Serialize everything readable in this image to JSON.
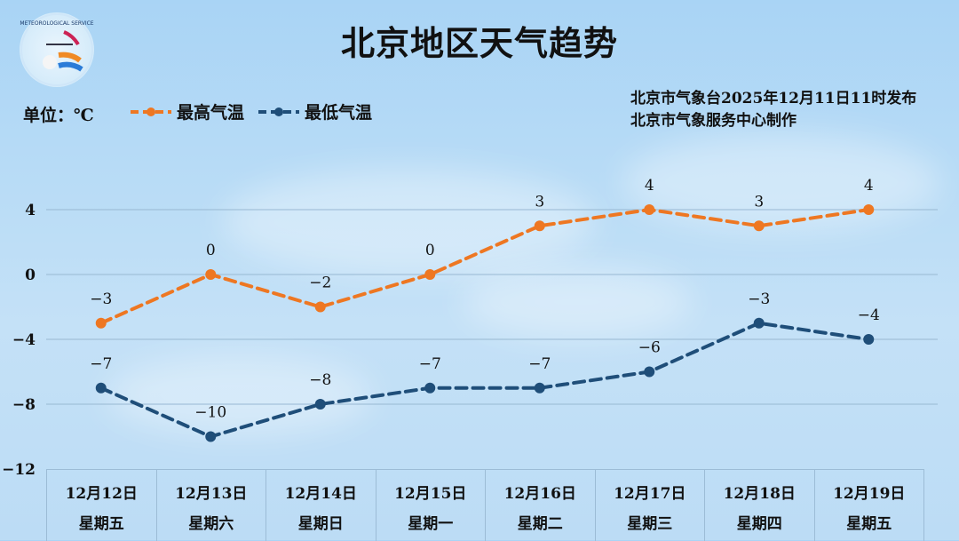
{
  "header": {
    "title": "北京地区天气趋势",
    "unit": "单位：℃",
    "issuer_line1": "北京市气象台2025年12月11日11时发布",
    "issuer_line2": "北京市气象服务中心制作",
    "logo": "meteorological-service-logo"
  },
  "legend": [
    {
      "label": "最高气温",
      "color": "#ee7722"
    },
    {
      "label": "最低气温",
      "color": "#1f4e79"
    }
  ],
  "days": [
    {
      "date": "12月12日",
      "weekday": "星期五"
    },
    {
      "date": "12月13日",
      "weekday": "星期六"
    },
    {
      "date": "12月14日",
      "weekday": "星期日"
    },
    {
      "date": "12月15日",
      "weekday": "星期一"
    },
    {
      "date": "12月16日",
      "weekday": "星期二"
    },
    {
      "date": "12月17日",
      "weekday": "星期三"
    },
    {
      "date": "12月18日",
      "weekday": "星期四"
    },
    {
      "date": "12月19日",
      "weekday": "星期五"
    }
  ],
  "chart_data": {
    "type": "line",
    "title": "北京地区天气趋势",
    "xlabel": "",
    "ylabel": "单位：℃",
    "categories": [
      "12月12日 星期五",
      "12月13日 星期六",
      "12月14日 星期日",
      "12月15日 星期一",
      "12月16日 星期二",
      "12月17日 星期三",
      "12月18日 星期四",
      "12月19日 星期五"
    ],
    "series": [
      {
        "name": "最高气温",
        "color": "#ee7722",
        "values": [
          -3,
          0,
          -2,
          0,
          3,
          4,
          3,
          4
        ]
      },
      {
        "name": "最低气温",
        "color": "#1f4e79",
        "values": [
          -7,
          -10,
          -8,
          -7,
          -7,
          -6,
          -3,
          -4
        ]
      }
    ],
    "yticks": [
      4,
      0,
      -4,
      -8,
      -12
    ],
    "ylim": [
      -12,
      4
    ],
    "grid": true,
    "legend_position": "top-left",
    "line_style": "dashed with circle markers"
  }
}
